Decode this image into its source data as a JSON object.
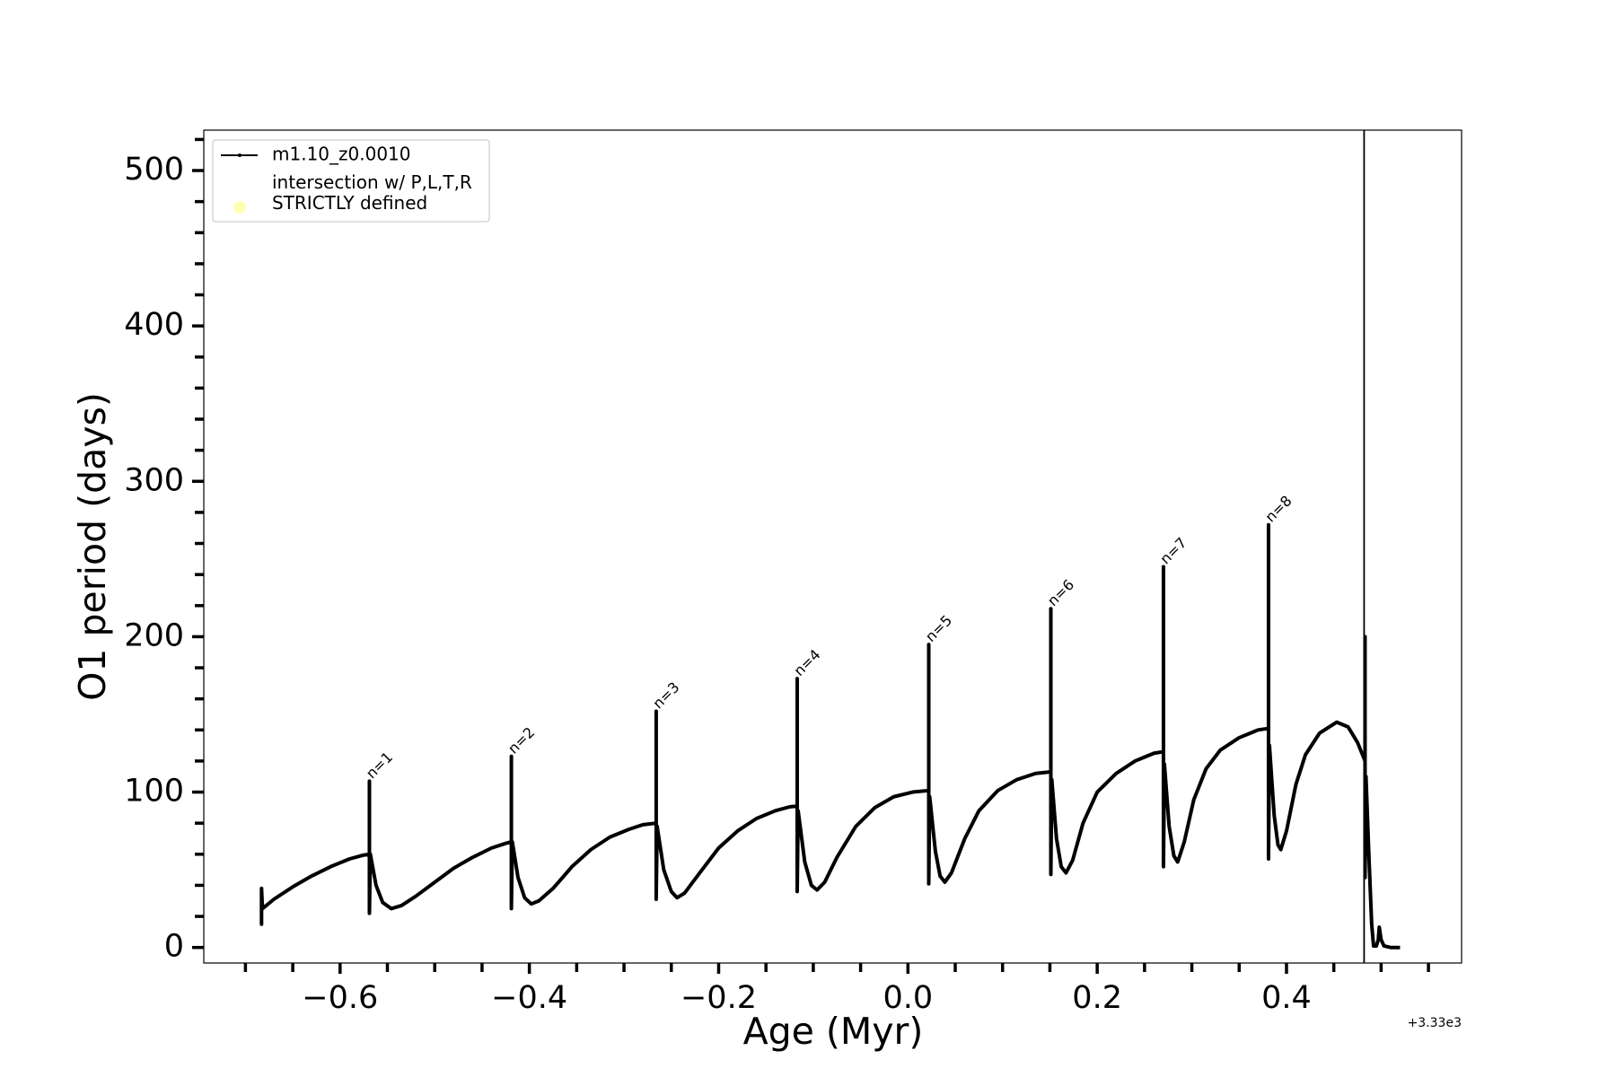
{
  "chart_data": {
    "type": "line",
    "xlabel": "Age (Myr)",
    "ylabel": "O1 period (days)",
    "x_offset_label": "+3.33e3",
    "xlim": [
      -0.744,
      0.585
    ],
    "ylim": [
      -10,
      526
    ],
    "xticks": [
      {
        "value": -0.6,
        "label": "−0.6"
      },
      {
        "value": -0.4,
        "label": "−0.4"
      },
      {
        "value": -0.2,
        "label": "−0.2"
      },
      {
        "value": 0,
        "label": "0.0"
      },
      0.2,
      0.4
    ],
    "xminorticks": [
      -0.7,
      -0.65,
      -0.55,
      -0.5,
      -0.45,
      -0.35,
      -0.3,
      -0.25,
      -0.15,
      -0.1,
      -0.05,
      0.05,
      0.1,
      0.15,
      0.25,
      0.3,
      0.35,
      0.45,
      0.5,
      0.55
    ],
    "yticks": [
      0,
      100,
      200,
      300,
      400,
      500
    ],
    "yminorticks": [
      20,
      40,
      60,
      80,
      120,
      140,
      160,
      180,
      220,
      240,
      260,
      280,
      320,
      340,
      360,
      380,
      420,
      440,
      460,
      480,
      520
    ],
    "vlines": [
      0.482
    ],
    "legend": "upper left",
    "series": [
      {
        "name": "m1.10_z0.0010",
        "color": "#000000",
        "type": "line",
        "x": [
          -0.683,
          -0.683,
          -0.683,
          -0.682,
          -0.67,
          -0.65,
          -0.63,
          -0.61,
          -0.59,
          -0.575,
          -0.569,
          -0.569,
          -0.569,
          -0.568,
          -0.562,
          -0.555,
          -0.546,
          -0.535,
          -0.52,
          -0.5,
          -0.48,
          -0.46,
          -0.44,
          -0.425,
          -0.419,
          -0.419,
          -0.419,
          -0.418,
          -0.412,
          -0.405,
          -0.398,
          -0.39,
          -0.375,
          -0.355,
          -0.335,
          -0.315,
          -0.295,
          -0.28,
          -0.266,
          -0.266,
          -0.266,
          -0.265,
          -0.258,
          -0.25,
          -0.244,
          -0.236,
          -0.22,
          -0.2,
          -0.18,
          -0.16,
          -0.14,
          -0.125,
          -0.117,
          -0.117,
          -0.117,
          -0.116,
          -0.109,
          -0.102,
          -0.096,
          -0.088,
          -0.075,
          -0.055,
          -0.035,
          -0.015,
          0.005,
          0.022,
          0.022,
          0.022,
          0.023,
          0.029,
          0.034,
          0.039,
          0.046,
          0.06,
          0.075,
          0.095,
          0.115,
          0.135,
          0.151,
          0.151,
          0.151,
          0.152,
          0.157,
          0.162,
          0.167,
          0.174,
          0.185,
          0.2,
          0.22,
          0.24,
          0.26,
          0.27,
          0.27,
          0.27,
          0.271,
          0.276,
          0.281,
          0.285,
          0.292,
          0.302,
          0.315,
          0.33,
          0.35,
          0.37,
          0.381,
          0.381,
          0.381,
          0.382,
          0.387,
          0.391,
          0.394,
          0.4,
          0.41,
          0.42,
          0.435,
          0.453,
          0.465,
          0.475,
          0.483,
          0.483,
          0.483,
          0.484,
          0.487,
          0.49,
          0.492,
          0.495,
          0.497,
          0.498,
          0.5,
          0.503,
          0.51,
          0.52
        ],
        "values": [
          30,
          15,
          38,
          25,
          31,
          39,
          46,
          52,
          57,
          59.5,
          60,
          107,
          22,
          60,
          40,
          29,
          25,
          27,
          33,
          42,
          51,
          58,
          64,
          67,
          68,
          123,
          25,
          68,
          45,
          32,
          28,
          30,
          38,
          52,
          63,
          71,
          76,
          79,
          80,
          152,
          31,
          78,
          50,
          36,
          32,
          35,
          48,
          64,
          75,
          83,
          88,
          90.5,
          91,
          173,
          36,
          88,
          55,
          40,
          37,
          42,
          58,
          78,
          90,
          97,
          100,
          101,
          195,
          41,
          97,
          62,
          46,
          42,
          48,
          70,
          88,
          101,
          108,
          112,
          113,
          218,
          47,
          108,
          70,
          52,
          48,
          56,
          80,
          100,
          112,
          120,
          125,
          126,
          245,
          52,
          118,
          78,
          59,
          55,
          68,
          95,
          115,
          127,
          135,
          140,
          141,
          272,
          57,
          130,
          85,
          66,
          63,
          75,
          105,
          124,
          138,
          145,
          142,
          132,
          120,
          200,
          45,
          110,
          60,
          15,
          1,
          1,
          5,
          13,
          5,
          1,
          0,
          0
        ]
      },
      {
        "name": "intersection w/ P,L,T,R\nSTRICTLY defined",
        "color": "#ffffb3",
        "type": "scatter",
        "x": [],
        "values": []
      }
    ],
    "annotations": [
      {
        "text": "n=1",
        "x": -0.569,
        "y": 107
      },
      {
        "text": "n=2",
        "x": -0.419,
        "y": 123
      },
      {
        "text": "n=3",
        "x": -0.266,
        "y": 152
      },
      {
        "text": "n=4",
        "x": -0.117,
        "y": 173
      },
      {
        "text": "n=5",
        "x": 0.022,
        "y": 195
      },
      {
        "text": "n=6",
        "x": 0.151,
        "y": 218
      },
      {
        "text": "n=7",
        "x": 0.27,
        "y": 245
      },
      {
        "text": "n=8",
        "x": 0.381,
        "y": 272
      }
    ]
  }
}
